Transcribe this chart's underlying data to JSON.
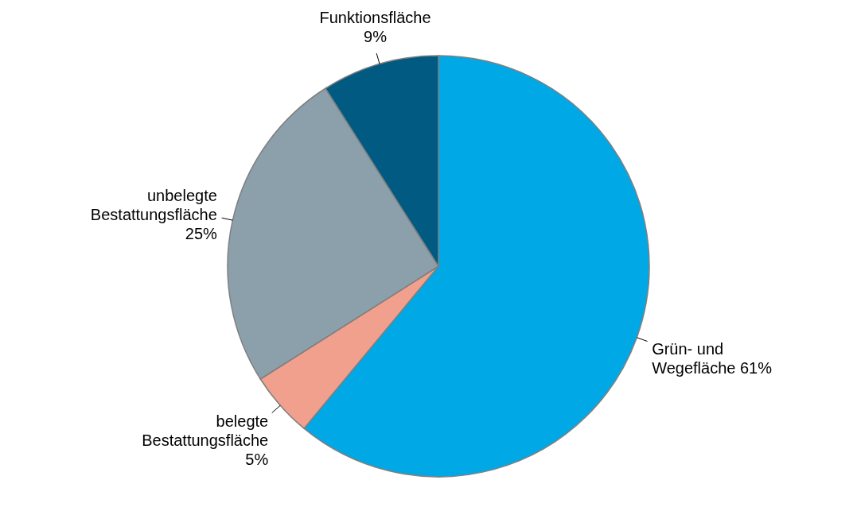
{
  "chart_data": {
    "type": "pie",
    "categories": [
      "Grün- und Wegefläche",
      "belegte Bestattungsfläche",
      "unbelegte Bestattungsfläche",
      "Funktionsfläche"
    ],
    "values": [
      61,
      5,
      25,
      9
    ],
    "value_labels": [
      "61%",
      "5%",
      "25%",
      "9%"
    ],
    "colors": [
      "#00a9e6",
      "#f0a08c",
      "#8ca0ac",
      "#005a82"
    ],
    "legend": false
  }
}
